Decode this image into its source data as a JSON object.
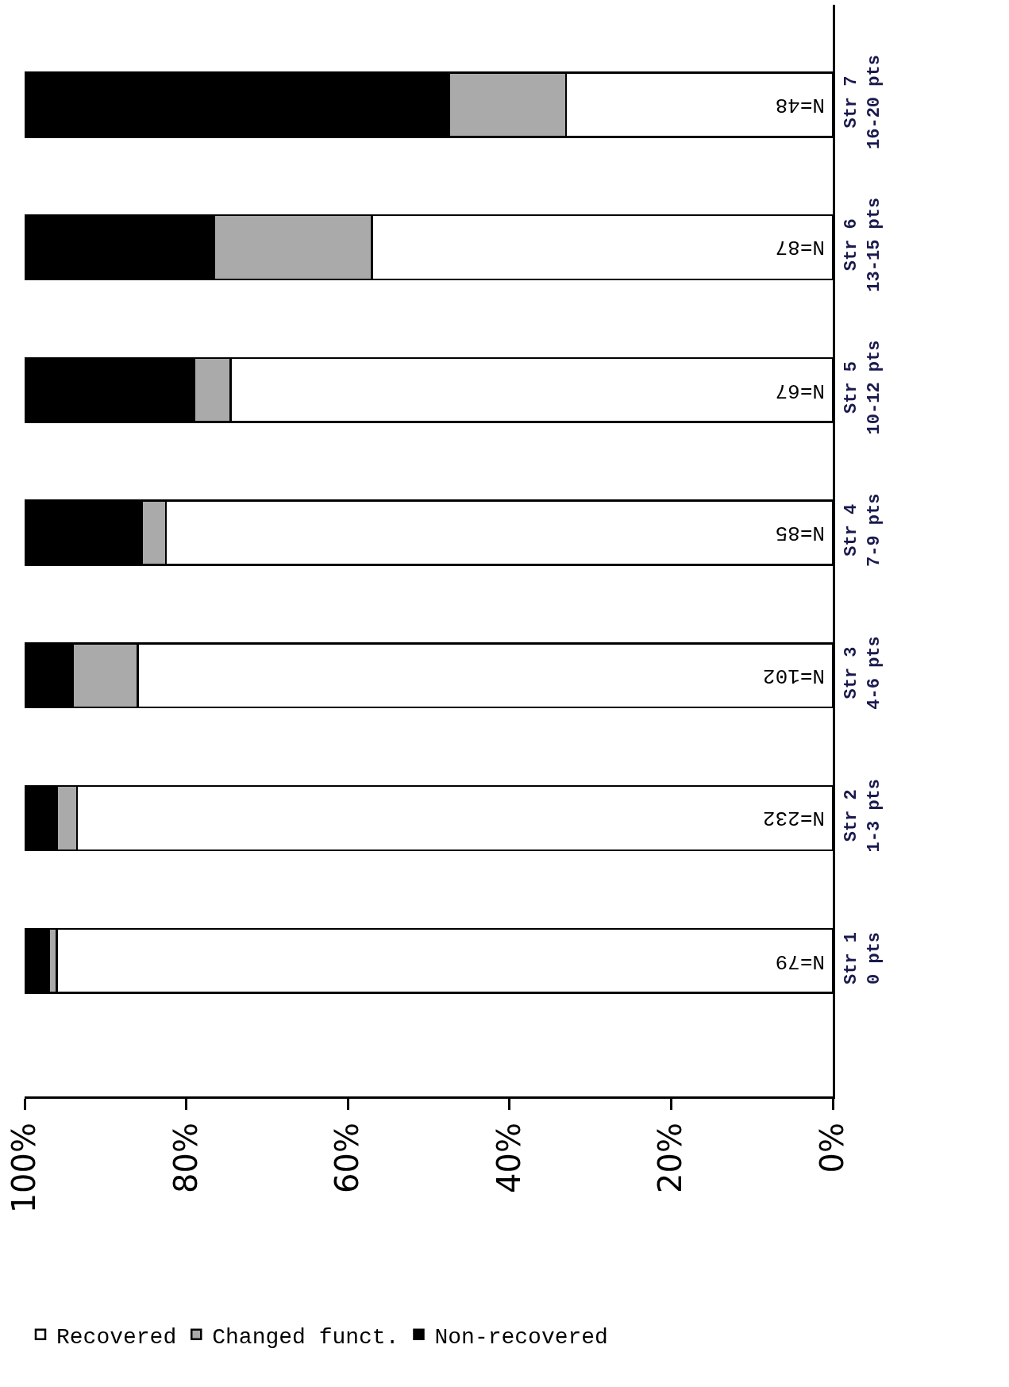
{
  "chart_data": {
    "type": "bar",
    "orientation": "horizontal",
    "stacked": true,
    "categories": [
      "Str 7\n16-20 pts",
      "Str 6\n13-15 pts",
      "Str 5\n10-12 pts",
      "Str 4\n7-9 pts",
      "Str 3\n4-6 pts",
      "Str 2\n1-3 pts",
      "Str 1\n0 pts"
    ],
    "series": [
      {
        "name": "Recovered",
        "color": "#ffffff",
        "values": [
          33,
          57,
          74.5,
          82.5,
          86,
          93.5,
          96
        ]
      },
      {
        "name": "Changed funct.",
        "color": "#aaaaaa",
        "values": [
          14.5,
          19.5,
          4.5,
          3,
          8,
          2.5,
          1
        ]
      },
      {
        "name": "Non-recovered",
        "color": "#000000",
        "values": [
          52.5,
          23.5,
          21,
          14.5,
          6,
          4,
          3
        ]
      }
    ],
    "annotations": [
      "N=48",
      "N=87",
      "N=67",
      "N=85",
      "N=102",
      "N=232",
      "N=79"
    ],
    "xlim": [
      100,
      0
    ],
    "xticks": [
      {
        "value": 100,
        "label": "100%"
      },
      {
        "value": 80,
        "label": "80%"
      },
      {
        "value": 60,
        "label": "60%"
      },
      {
        "value": 40,
        "label": "40%"
      },
      {
        "value": 20,
        "label": "20%"
      },
      {
        "value": 0,
        "label": "0%"
      }
    ],
    "legend": "bottom"
  }
}
